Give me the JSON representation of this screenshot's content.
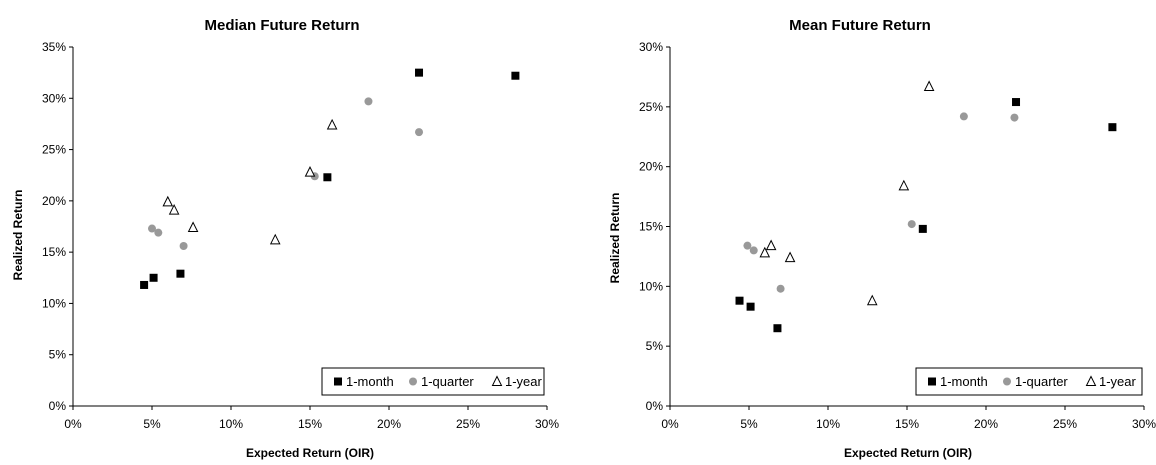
{
  "chart_data": [
    {
      "type": "scatter",
      "title": "Median Future Return",
      "xlabel": "Expected Return (OIR)",
      "ylabel": "Realized Return",
      "xlim": [
        0,
        30
      ],
      "ylim": [
        0,
        35
      ],
      "xticks": [
        "0%",
        "5%",
        "10%",
        "15%",
        "20%",
        "25%",
        "30%"
      ],
      "yticks": [
        "0%",
        "5%",
        "10%",
        "15%",
        "20%",
        "25%",
        "30%",
        "35%"
      ],
      "legend_position": "bottom-right",
      "grid": false,
      "series": [
        {
          "name": "1-month",
          "marker": "square",
          "color": "#000000",
          "points": [
            [
              4.5,
              11.8
            ],
            [
              5.1,
              12.5
            ],
            [
              6.8,
              12.9
            ],
            [
              16.1,
              22.3
            ],
            [
              21.9,
              32.5
            ],
            [
              28.0,
              32.2
            ]
          ]
        },
        {
          "name": "1-quarter",
          "marker": "circle",
          "color": "#999999",
          "points": [
            [
              5.0,
              17.3
            ],
            [
              5.4,
              16.9
            ],
            [
              7.0,
              15.6
            ],
            [
              15.3,
              22.4
            ],
            [
              18.7,
              29.7
            ],
            [
              21.9,
              26.7
            ]
          ]
        },
        {
          "name": "1-year",
          "marker": "triangle",
          "color": "#000000",
          "points": [
            [
              6.0,
              19.9
            ],
            [
              6.4,
              19.1
            ],
            [
              7.6,
              17.4
            ],
            [
              12.8,
              16.2
            ],
            [
              15.0,
              22.8
            ],
            [
              16.4,
              27.4
            ]
          ]
        }
      ]
    },
    {
      "type": "scatter",
      "title": "Mean Future Return",
      "xlabel": "Expected Return (OIR)",
      "ylabel": "Realized Return",
      "xlim": [
        0,
        30
      ],
      "ylim": [
        0,
        30
      ],
      "xticks": [
        "0%",
        "5%",
        "10%",
        "15%",
        "20%",
        "25%",
        "30%"
      ],
      "yticks": [
        "0%",
        "5%",
        "10%",
        "15%",
        "20%",
        "25%",
        "30%"
      ],
      "legend_position": "bottom-right",
      "grid": false,
      "series": [
        {
          "name": "1-month",
          "marker": "square",
          "color": "#000000",
          "points": [
            [
              4.4,
              8.8
            ],
            [
              5.1,
              8.3
            ],
            [
              6.8,
              6.5
            ],
            [
              16.0,
              14.8
            ],
            [
              21.9,
              25.4
            ],
            [
              28.0,
              23.3
            ]
          ]
        },
        {
          "name": "1-quarter",
          "marker": "circle",
          "color": "#999999",
          "points": [
            [
              4.9,
              13.4
            ],
            [
              5.3,
              13.0
            ],
            [
              7.0,
              9.8
            ],
            [
              15.3,
              15.2
            ],
            [
              18.6,
              24.2
            ],
            [
              21.8,
              24.1
            ]
          ]
        },
        {
          "name": "1-year",
          "marker": "triangle",
          "color": "#000000",
          "points": [
            [
              6.0,
              12.8
            ],
            [
              6.4,
              13.4
            ],
            [
              7.6,
              12.4
            ],
            [
              12.8,
              8.8
            ],
            [
              14.8,
              18.4
            ],
            [
              16.4,
              26.7
            ]
          ]
        }
      ]
    }
  ]
}
